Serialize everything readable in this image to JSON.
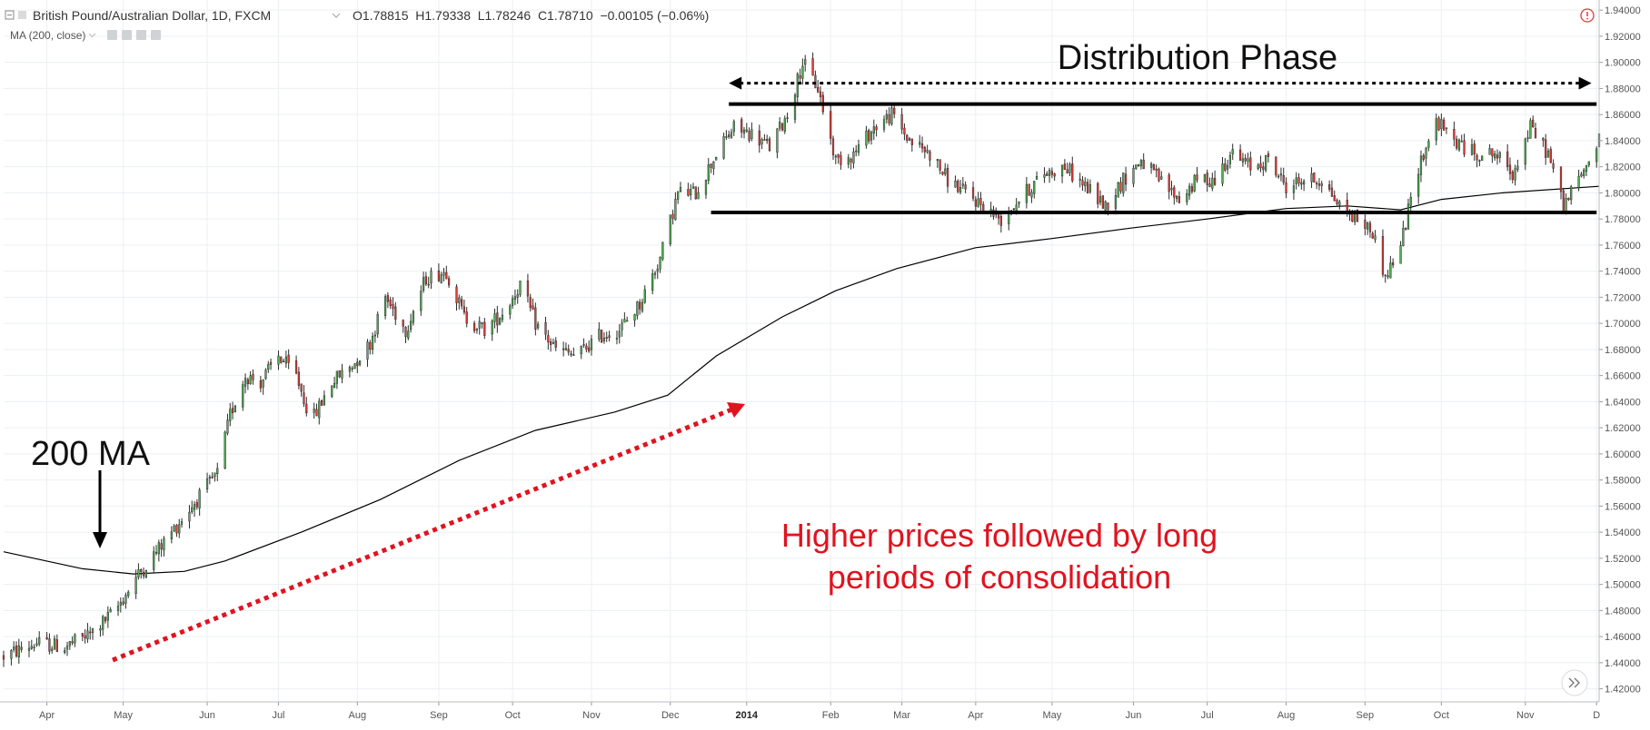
{
  "header": {
    "symbol": "British Pound/Australian Dollar, 1D, FXCM",
    "ohlc": "O1.78815  H1.79338  L1.78246  C1.78710  −0.00105 (−0.06%)",
    "indicator": "MA (200, close)"
  },
  "colors": {
    "up": "#4caf50",
    "down": "#e53935",
    "ma": "#000000",
    "annotation_red": "#e0131f",
    "grid": "#eceff2",
    "axis_text": "#555555"
  },
  "chart_data": {
    "type": "candlestick",
    "ylim": [
      1.41,
      1.945
    ],
    "y_ticks": [
      "1.42000",
      "1.44000",
      "1.46000",
      "1.48000",
      "1.50000",
      "1.52000",
      "1.54000",
      "1.56000",
      "1.58000",
      "1.60000",
      "1.62000",
      "1.64000",
      "1.66000",
      "1.68000",
      "1.70000",
      "1.72000",
      "1.74000",
      "1.76000",
      "1.78000",
      "1.80000",
      "1.82000",
      "1.84000",
      "1.86000",
      "1.88000",
      "1.90000",
      "1.92000",
      "1.94000"
    ],
    "x_range": [
      "2013-03-15",
      "2014-12-02"
    ],
    "x_ticks": [
      {
        "date": "2013-04-01",
        "label": "Apr"
      },
      {
        "date": "2013-05-01",
        "label": "May"
      },
      {
        "date": "2013-06-03",
        "label": "Jun"
      },
      {
        "date": "2013-07-01",
        "label": "Jul"
      },
      {
        "date": "2013-08-01",
        "label": "Aug"
      },
      {
        "date": "2013-09-02",
        "label": "Sep"
      },
      {
        "date": "2013-10-01",
        "label": "Oct"
      },
      {
        "date": "2013-11-01",
        "label": "Nov"
      },
      {
        "date": "2013-12-02",
        "label": "Dec"
      },
      {
        "date": "2014-01-01",
        "label": "2014"
      },
      {
        "date": "2014-02-03",
        "label": "Feb"
      },
      {
        "date": "2014-03-03",
        "label": "Mar"
      },
      {
        "date": "2014-04-01",
        "label": "Apr"
      },
      {
        "date": "2014-05-01",
        "label": "May"
      },
      {
        "date": "2014-06-02",
        "label": "Jun"
      },
      {
        "date": "2014-07-01",
        "label": "Jul"
      },
      {
        "date": "2014-08-01",
        "label": "Aug"
      },
      {
        "date": "2014-09-01",
        "label": "Sep"
      },
      {
        "date": "2014-10-01",
        "label": "Oct"
      },
      {
        "date": "2014-11-03",
        "label": "Nov"
      },
      {
        "date": "2014-12-01",
        "label": "D"
      }
    ],
    "close_path": [
      [
        "2013-03-15",
        1.445
      ],
      [
        "2013-03-28",
        1.455
      ],
      [
        "2013-04-08",
        1.452
      ],
      [
        "2013-04-18",
        1.462
      ],
      [
        "2013-04-28",
        1.48
      ],
      [
        "2013-05-06",
        1.505
      ],
      [
        "2013-05-14",
        1.525
      ],
      [
        "2013-05-22",
        1.545
      ],
      [
        "2013-05-30",
        1.565
      ],
      [
        "2013-06-07",
        1.585
      ],
      [
        "2013-06-12",
        1.63
      ],
      [
        "2013-06-18",
        1.66
      ],
      [
        "2013-06-24",
        1.655
      ],
      [
        "2013-07-01",
        1.675
      ],
      [
        "2013-07-08",
        1.66
      ],
      [
        "2013-07-14",
        1.625
      ],
      [
        "2013-07-22",
        1.655
      ],
      [
        "2013-07-31",
        1.67
      ],
      [
        "2013-08-06",
        1.685
      ],
      [
        "2013-08-12",
        1.72
      ],
      [
        "2013-08-20",
        1.695
      ],
      [
        "2013-08-28",
        1.735
      ],
      [
        "2013-09-05",
        1.74
      ],
      [
        "2013-09-12",
        1.705
      ],
      [
        "2013-09-20",
        1.695
      ],
      [
        "2013-09-28",
        1.71
      ],
      [
        "2013-10-04",
        1.73
      ],
      [
        "2013-10-10",
        1.7
      ],
      [
        "2013-10-18",
        1.68
      ],
      [
        "2013-10-26",
        1.675
      ],
      [
        "2013-11-04",
        1.69
      ],
      [
        "2013-11-12",
        1.695
      ],
      [
        "2013-11-20",
        1.715
      ],
      [
        "2013-11-28",
        1.75
      ],
      [
        "2013-12-05",
        1.8
      ],
      [
        "2013-12-12",
        1.8
      ],
      [
        "2013-12-20",
        1.83
      ],
      [
        "2013-12-27",
        1.85
      ],
      [
        "2014-01-03",
        1.845
      ],
      [
        "2014-01-10",
        1.835
      ],
      [
        "2014-01-17",
        1.86
      ],
      [
        "2014-01-23",
        1.9
      ],
      [
        "2014-01-29",
        1.88
      ],
      [
        "2014-02-05",
        1.825
      ],
      [
        "2014-02-12",
        1.83
      ],
      [
        "2014-02-20",
        1.85
      ],
      [
        "2014-02-27",
        1.86
      ],
      [
        "2014-03-06",
        1.84
      ],
      [
        "2014-03-14",
        1.83
      ],
      [
        "2014-03-21",
        1.81
      ],
      [
        "2014-03-28",
        1.8
      ],
      [
        "2014-04-04",
        1.79
      ],
      [
        "2014-04-11",
        1.78
      ],
      [
        "2014-04-18",
        1.795
      ],
      [
        "2014-04-28",
        1.815
      ],
      [
        "2014-05-06",
        1.82
      ],
      [
        "2014-05-14",
        1.805
      ],
      [
        "2014-05-22",
        1.79
      ],
      [
        "2014-05-29",
        1.81
      ],
      [
        "2014-06-05",
        1.825
      ],
      [
        "2014-06-12",
        1.81
      ],
      [
        "2014-06-20",
        1.795
      ],
      [
        "2014-06-27",
        1.81
      ],
      [
        "2014-07-04",
        1.81
      ],
      [
        "2014-07-10",
        1.83
      ],
      [
        "2014-07-18",
        1.82
      ],
      [
        "2014-07-25",
        1.825
      ],
      [
        "2014-08-01",
        1.805
      ],
      [
        "2014-08-08",
        1.81
      ],
      [
        "2014-08-15",
        1.81
      ],
      [
        "2014-08-22",
        1.79
      ],
      [
        "2014-08-29",
        1.78
      ],
      [
        "2014-09-04",
        1.77
      ],
      [
        "2014-09-09",
        1.735
      ],
      [
        "2014-09-15",
        1.76
      ],
      [
        "2014-09-22",
        1.82
      ],
      [
        "2014-09-29",
        1.855
      ],
      [
        "2014-10-06",
        1.84
      ],
      [
        "2014-10-14",
        1.83
      ],
      [
        "2014-10-22",
        1.83
      ],
      [
        "2014-10-29",
        1.815
      ],
      [
        "2014-11-05",
        1.85
      ],
      [
        "2014-11-12",
        1.83
      ],
      [
        "2014-11-18",
        1.79
      ],
      [
        "2014-11-24",
        1.81
      ],
      [
        "2014-12-02",
        1.84
      ]
    ],
    "ma_200": [
      [
        "2013-03-15",
        1.525
      ],
      [
        "2013-04-15",
        1.512
      ],
      [
        "2013-05-05",
        1.508
      ],
      [
        "2013-05-25",
        1.51
      ],
      [
        "2013-06-10",
        1.518
      ],
      [
        "2013-07-10",
        1.54
      ],
      [
        "2013-08-10",
        1.565
      ],
      [
        "2013-09-10",
        1.595
      ],
      [
        "2013-10-10",
        1.618
      ],
      [
        "2013-11-10",
        1.632
      ],
      [
        "2013-12-01",
        1.645
      ],
      [
        "2013-12-20",
        1.675
      ],
      [
        "2014-01-15",
        1.705
      ],
      [
        "2014-02-05",
        1.725
      ],
      [
        "2014-03-01",
        1.742
      ],
      [
        "2014-04-01",
        1.758
      ],
      [
        "2014-05-01",
        1.765
      ],
      [
        "2014-06-01",
        1.773
      ],
      [
        "2014-07-01",
        1.78
      ],
      [
        "2014-08-01",
        1.788
      ],
      [
        "2014-08-25",
        1.79
      ],
      [
        "2014-09-15",
        1.787
      ],
      [
        "2014-10-01",
        1.795
      ],
      [
        "2014-10-25",
        1.8
      ],
      [
        "2014-12-02",
        1.805
      ]
    ],
    "resistance": {
      "value": 1.868,
      "from": "2013-12-25",
      "to": "2014-12-01"
    },
    "support": {
      "value": 1.785,
      "from": "2013-12-18",
      "to": "2014-12-01"
    },
    "distribution_range": {
      "value": 1.884,
      "from": "2013-12-25",
      "to": "2014-11-29"
    },
    "annotations": {
      "distribution": "Distribution Phase",
      "ma_label": "200 MA",
      "trend_text_1": "Higher prices followed by long",
      "trend_text_2": "periods of consolidation"
    }
  }
}
